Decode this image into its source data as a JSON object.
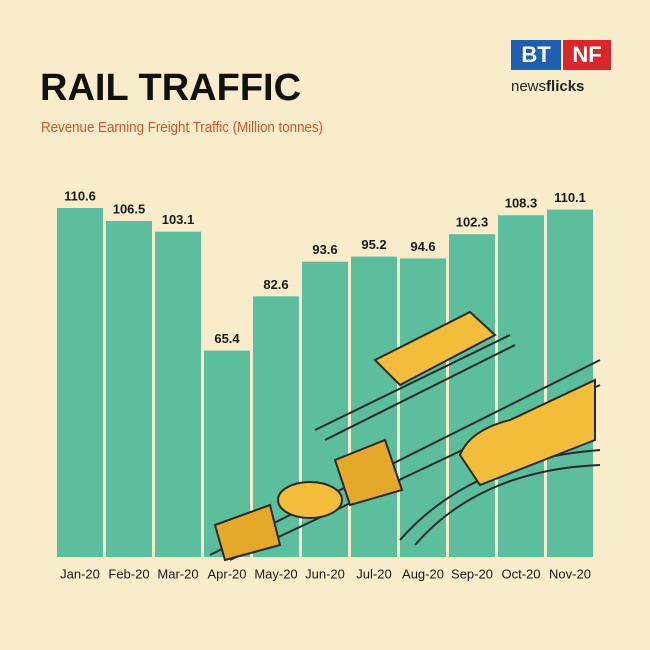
{
  "logo": {
    "left": "BT",
    "right": "NF",
    "tagline_regular": "news",
    "tagline_bold": "flicks"
  },
  "chart_data": {
    "type": "bar",
    "title": "RAIL TRAFFIC",
    "subtitle": "Revenue Earning Freight Traffic (Million tonnes)",
    "categories": [
      "Jan-20",
      "Feb-20",
      "Mar-20",
      "Apr-20",
      "May-20",
      "Jun-20",
      "Jul-20",
      "Aug-20",
      "Sep-20",
      "Oct-20",
      "Nov-20"
    ],
    "values": [
      110.6,
      106.5,
      103.1,
      65.4,
      82.6,
      93.6,
      95.2,
      94.6,
      102.3,
      108.3,
      110.1
    ],
    "color": "#5dbe9d"
  }
}
